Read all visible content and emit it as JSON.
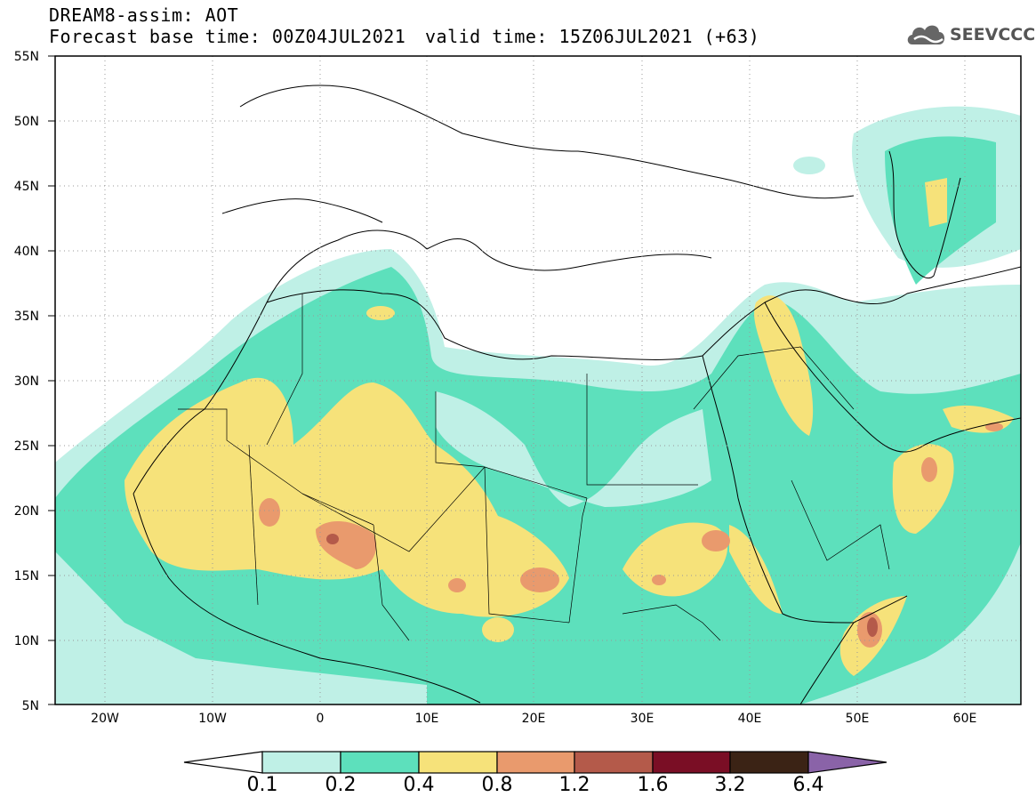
{
  "header": {
    "line1": "DREAM8-assim: AOT",
    "line2": "Forecast base time: 00Z04JUL2021",
    "valid": "valid time: 15Z06JUL2021 (+63)",
    "logo_text": "SEEVCCC",
    "logo_icon": "cloud-icon"
  },
  "axes": {
    "lat_labels": [
      "55N",
      "50N",
      "45N",
      "40N",
      "35N",
      "30N",
      "25N",
      "20N",
      "15N",
      "10N",
      "5N"
    ],
    "lon_labels": [
      "20W",
      "10W",
      "0",
      "10E",
      "20E",
      "30E",
      "40E",
      "50E",
      "60E"
    ],
    "lat_range": [
      5,
      55
    ],
    "lon_range": [
      -25,
      65
    ]
  },
  "colorbar": {
    "levels": [
      "0.1",
      "0.2",
      "0.4",
      "0.8",
      "1.2",
      "1.6",
      "3.2",
      "6.4"
    ],
    "colors": [
      "#ffffff",
      "#bff0e6",
      "#5de0bc",
      "#f6e27a",
      "#e99a6d",
      "#b45a4a",
      "#7a0e25",
      "#3b2315",
      "#8a63a8"
    ]
  },
  "palette": {
    "c01": "#bff0e6",
    "c02": "#5de0bc",
    "c04": "#f6e27a",
    "c08": "#e99a6d",
    "c12": "#b45a4a",
    "c16": "#7a0e25"
  }
}
